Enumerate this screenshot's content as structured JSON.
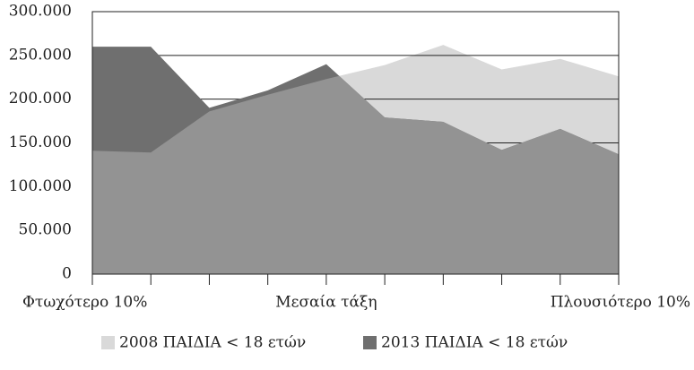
{
  "chart_data": {
    "type": "area",
    "categories": [
      "Φτωχότερο 10%",
      null,
      null,
      null,
      "Μεσαία τάξη",
      null,
      null,
      null,
      null,
      "Πλουσιότερο 10%"
    ],
    "series": [
      {
        "name": "2008 ΠΑΙΔΙΑ < 18 ετών",
        "color": "#d9d9d9",
        "values": [
          141000,
          139000,
          186000,
          205000,
          223000,
          239000,
          262000,
          234000,
          246000,
          226000
        ]
      },
      {
        "name": "2013 ΠΑΙΔΙΑ < 18 ετών",
        "color": "#6f6f6f",
        "values": [
          260000,
          260000,
          190000,
          210000,
          240000,
          179000,
          174000,
          142000,
          166000,
          137000
        ]
      }
    ],
    "overlap_color": "#939393",
    "ylim": [
      0,
      300000
    ],
    "yticks": [
      0,
      {
        "value": 50000,
        "label": "50.000"
      },
      {
        "value": 100000,
        "label": "100.000"
      },
      {
        "value": 150000,
        "label": "150.000"
      },
      {
        "value": 200000,
        "label": "200.000"
      },
      {
        "value": 250000,
        "label": "250.000"
      },
      {
        "value": 300000,
        "label": "300.000"
      }
    ],
    "grid": true,
    "legend": "bottom"
  }
}
